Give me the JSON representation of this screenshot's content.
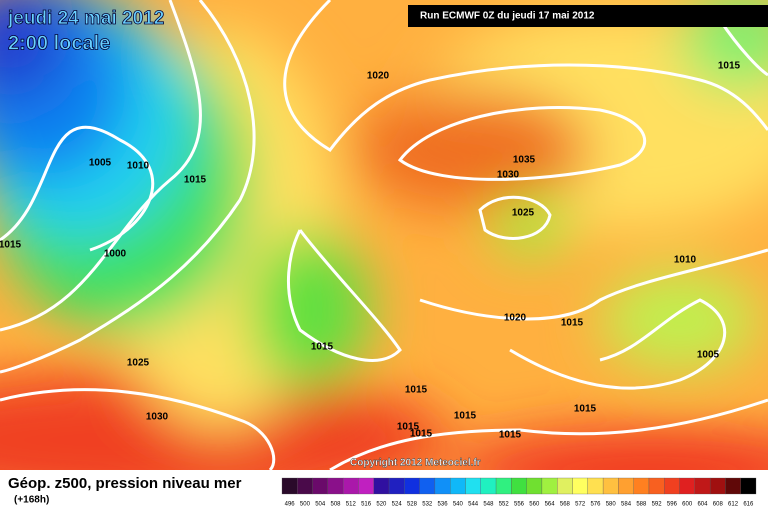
{
  "header": {
    "date": "jeudi 24 mai 2012",
    "time": "2:00 locale",
    "run": "Run ECMWF 0Z du jeudi 17 mai 2012"
  },
  "isobar_labels": [
    1020,
    1015,
    1005,
    1010,
    1015,
    1035,
    1030,
    1015,
    1000,
    1025,
    1010,
    1020,
    1015,
    1015,
    1005,
    1025,
    1015,
    1030,
    1015,
    1015,
    1015,
    1015,
    1015
  ],
  "copyright": "Copyright 2012 Meteociel.fr",
  "footer": {
    "title": "Géop. z500, pression niveau mer",
    "subtitle": "(+168h)"
  },
  "colorbar": {
    "labels": [
      496,
      500,
      504,
      508,
      512,
      516,
      520,
      524,
      528,
      532,
      536,
      540,
      544,
      548,
      552,
      556,
      560,
      564,
      568,
      572,
      576,
      580,
      584,
      588,
      592,
      596,
      600,
      604,
      608,
      612,
      616
    ],
    "colors": [
      "#2a0a2a",
      "#4a0a4a",
      "#6a0a6a",
      "#8a108a",
      "#aa18aa",
      "#c020c0",
      "#3010a0",
      "#2020c0",
      "#1030e0",
      "#1060f0",
      "#1090f8",
      "#10b8f8",
      "#20e0f0",
      "#20f0c0",
      "#30f080",
      "#40e040",
      "#70e030",
      "#a0f040",
      "#e0f060",
      "#ffff60",
      "#ffe050",
      "#ffc040",
      "#ffa030",
      "#ff8020",
      "#f86020",
      "#f04020",
      "#e02020",
      "#c01818",
      "#a01010",
      "#600808",
      "#000000"
    ]
  }
}
